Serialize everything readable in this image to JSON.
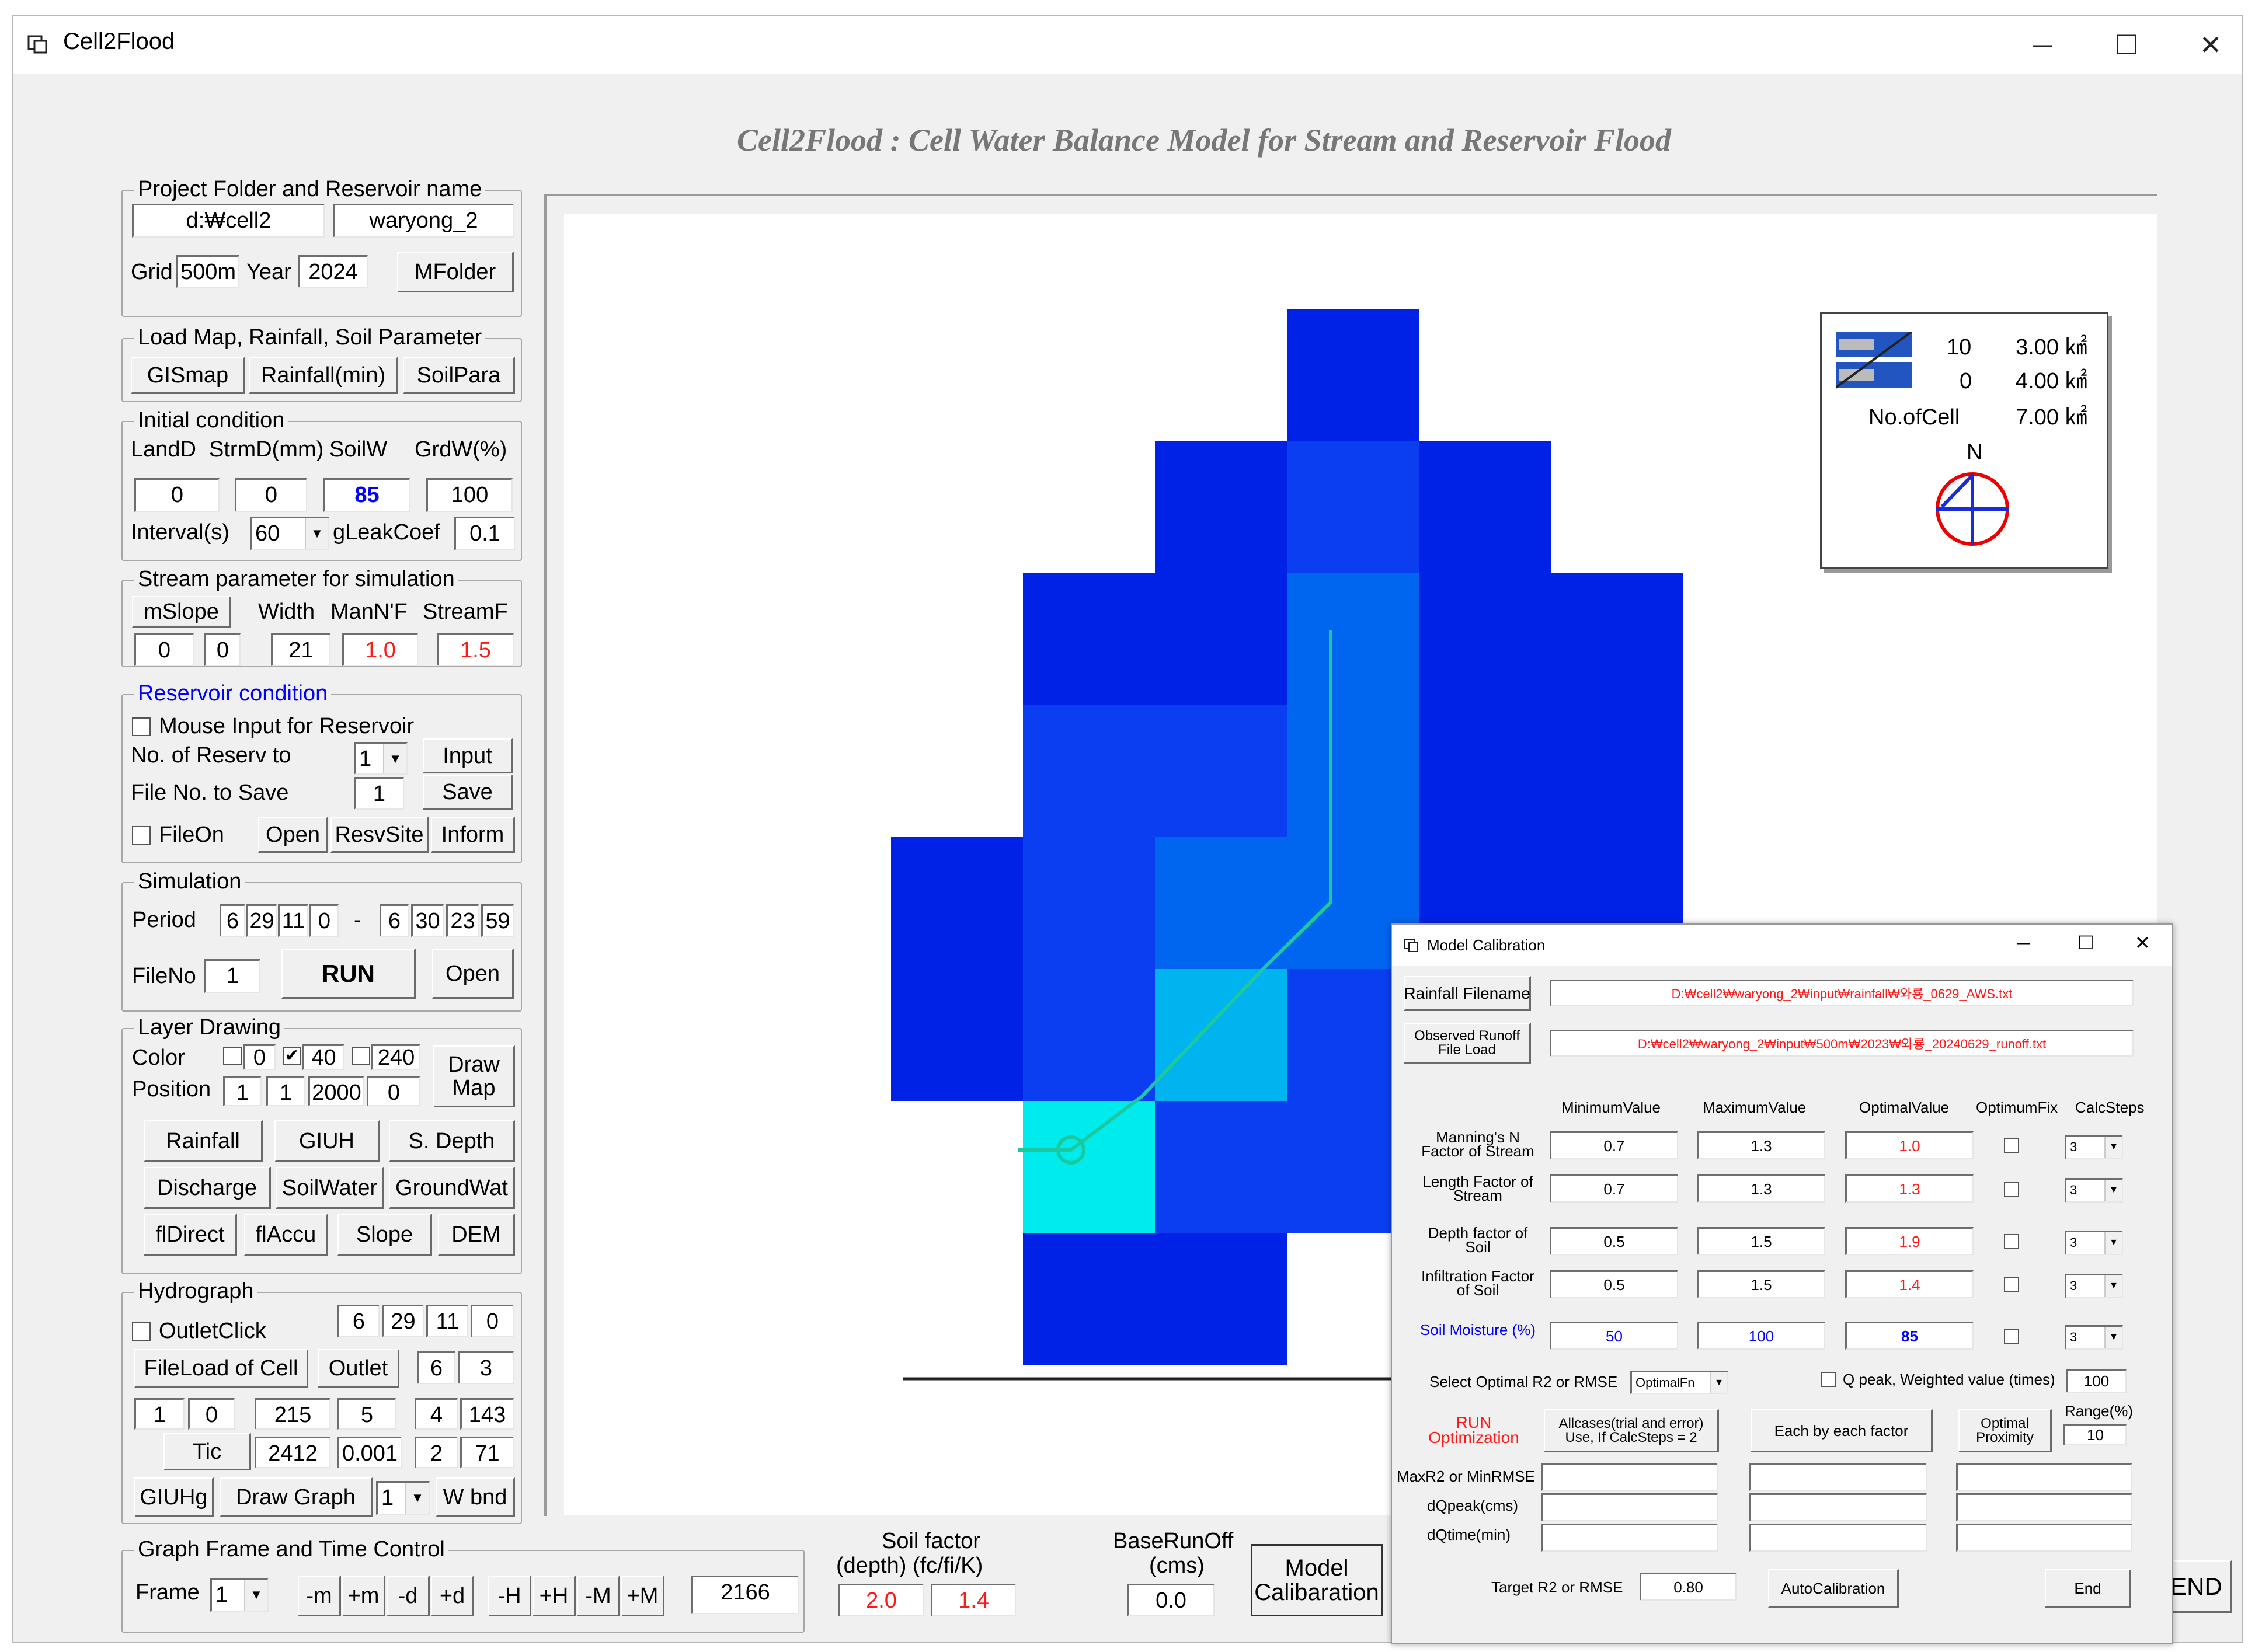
{
  "window": {
    "title": "Cell2Flood",
    "minimize": "─",
    "maximize": "☐",
    "close": "✕"
  },
  "app_title": "Cell2Flood : Cell Water Balance Model for Stream and Reservoir Flood",
  "project": {
    "group": "Project Folder and Reservoir name",
    "folder": "d:₩cell2",
    "reservoir": "waryong_2",
    "grid_label": "Grid",
    "grid": "500m",
    "year_label": "Year",
    "year": "2024",
    "mfolder": "MFolder"
  },
  "load": {
    "group": "Load Map, Rainfall, Soil Parameter",
    "gismap": "GISmap",
    "rainfall": "Rainfall(min)",
    "soilpara": "SoilPara"
  },
  "initial": {
    "group": "Initial condition",
    "h1": "LandD",
    "h2": "StrmD(mm)",
    "h3": "SoilW",
    "h4": "GrdW(%)",
    "v1": "0",
    "v2": "0",
    "v3": "85",
    "v4": "100",
    "interval_label": "Interval(s)",
    "interval": "60",
    "gleak_label": "gLeakCoef",
    "gleak": "0.1"
  },
  "stream": {
    "group": "Stream parameter for simulation",
    "mslope": "mSlope",
    "width": "Width",
    "mann": "ManN'F",
    "streamf": "StreamF",
    "v1": "0",
    "v2": "0",
    "v3": "21",
    "v4": "1.0",
    "v5": "1.5"
  },
  "reservoir": {
    "group": "Reservoir condition",
    "mouse": "Mouse Input for Reservoir",
    "no_label": "No. of Reserv to",
    "no": "1",
    "input": "Input",
    "fileno_label": "File No. to Save",
    "fileno": "1",
    "save": "Save",
    "fileon": "FileOn",
    "open": "Open",
    "resvsite": "ResvSite",
    "inform": "Inform"
  },
  "simulation": {
    "group": "Simulation",
    "period_label": "Period",
    "p": [
      "6",
      "29",
      "11",
      "0",
      "6",
      "30",
      "23",
      "59"
    ],
    "dash": "-",
    "fileno_label": "FileNo",
    "fileno": "1",
    "run": "RUN",
    "open": "Open"
  },
  "layer": {
    "group": "Layer Drawing",
    "color_label": "Color",
    "c1": "0",
    "c2": "40",
    "c3": "240",
    "position_label": "Position",
    "pos": [
      "1",
      "1",
      "2000",
      "0"
    ],
    "drawmap": "Draw Map",
    "b": [
      "Rainfall",
      "GIUH",
      "S. Depth",
      "Discharge",
      "SoilWater",
      "GroundWat",
      "flDirect",
      "flAccu",
      "Slope",
      "DEM"
    ]
  },
  "hydro": {
    "group": "Hydrograph",
    "outletclick": "OutletClick",
    "t": [
      "6",
      "29",
      "11",
      "0"
    ],
    "fileload": "FileLoad of Cell",
    "outlet": "Outlet",
    "o1": "6",
    "o2": "3",
    "r1": [
      "1",
      "0",
      "215",
      "5",
      "4",
      "143"
    ],
    "tic": "Tic",
    "r2": [
      "2412",
      "0.001",
      "2",
      "71"
    ],
    "giuhg": "GIUHg",
    "drawgraph": "Draw Graph",
    "dg": "1",
    "wbnd": "W bnd"
  },
  "frame": {
    "group": "Graph Frame and Time Control",
    "frame_label": "Frame",
    "frame": "1",
    "btns": [
      "-m",
      "+m",
      "-d",
      "+d",
      "-H",
      "+H",
      "-M",
      "+M"
    ],
    "value": "2166"
  },
  "soilfactor": {
    "label1": "Soil factor",
    "label2": "(depth)  (fc/fi/K)",
    "v1": "2.0",
    "v2": "1.4"
  },
  "baserunoff": {
    "label1": "BaseRunOff",
    "label2": "(cms)",
    "v": "0.0"
  },
  "modelcal_button": "Model Calibaration",
  "end_button": "END",
  "legend": {
    "n1": "10",
    "n2": "0",
    "a1": "3.00 ㎢",
    "a2": "4.00 ㎢",
    "nocell": "No.ofCell",
    "a3": "7.00 ㎢",
    "north": "N"
  },
  "colors": {
    "dark": "#0022e6",
    "mid": "#0a3ef0",
    "light": "#0066f0",
    "cyan1": "#00b4f0",
    "cyan2": "#00ebeb",
    "stream": "#1cc8a0"
  },
  "calib": {
    "title": "Model Calibration",
    "rain_btn": "Rainfall Filename",
    "rain_file": "D:₩cell2₩waryong_2₩input₩rainfall₩와룡_0629_AWS.txt",
    "obs_btn": "Observed Runoff File Load",
    "obs_file": "D:₩cell2₩waryong_2₩input₩500m₩2023₩와룡_20240629_runoff.txt",
    "h": [
      "MinimumValue",
      "MaximumValue",
      "OptimalValue",
      "OptimumFix",
      "CalcSteps"
    ],
    "rows": [
      {
        "label": "Manning's N Factor of Stream",
        "min": "0.7",
        "max": "1.3",
        "opt": "1.0",
        "steps": "3"
      },
      {
        "label": "Length Factor of Stream",
        "min": "0.7",
        "max": "1.3",
        "opt": "1.3",
        "steps": "3"
      },
      {
        "label": "Depth factor of Soil",
        "min": "0.5",
        "max": "1.5",
        "opt": "1.9",
        "steps": "3"
      },
      {
        "label": "Infiltration Factor of Soil",
        "min": "0.5",
        "max": "1.5",
        "opt": "1.4",
        "steps": "3"
      },
      {
        "label": "Soil Moisture (%)",
        "min": "50",
        "max": "100",
        "opt": "85",
        "steps": "3"
      }
    ],
    "select_label": "Select Optimal R2 or RMSE",
    "select_value": "OptimalFn",
    "qpeak_label": "Q peak, Weighted value (times)",
    "qpeak": "100",
    "run_opt": "RUN Optimization",
    "allcases": "Allcases(trial and error) Use, If CalcSteps = 2",
    "each": "Each by each factor",
    "proximity": "Optimal Proximity",
    "range_label": "Range(%)",
    "range": "10",
    "maxr2": "MaxR2 or MinRMSE",
    "dqpeak": "dQpeak(cms)",
    "dqtime": "dQtime(min)",
    "target_label": "Target R2 or RMSE",
    "target": "0.80",
    "autocal": "AutoCalibration",
    "end": "End"
  }
}
